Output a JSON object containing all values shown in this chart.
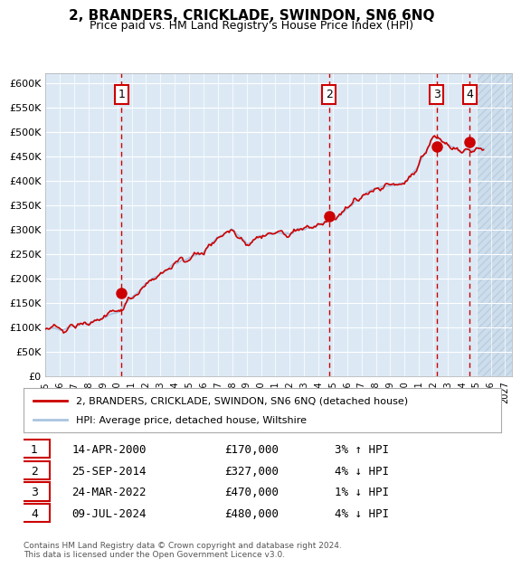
{
  "title": "2, BRANDERS, CRICKLADE, SWINDON, SN6 6NQ",
  "subtitle": "Price paid vs. HM Land Registry's House Price Index (HPI)",
  "ylim": [
    0,
    620000
  ],
  "yticks": [
    0,
    50000,
    100000,
    150000,
    200000,
    250000,
    300000,
    350000,
    400000,
    450000,
    500000,
    550000,
    600000
  ],
  "ytick_labels": [
    "£0",
    "£50K",
    "£100K",
    "£150K",
    "£200K",
    "£250K",
    "£300K",
    "£350K",
    "£400K",
    "£450K",
    "£500K",
    "£550K",
    "£600K"
  ],
  "xlim_start": 1995.0,
  "xlim_end": 2027.5,
  "sale_dates": [
    2000.29,
    2014.73,
    2022.23,
    2024.53
  ],
  "sale_prices": [
    170000,
    327000,
    470000,
    480000
  ],
  "sale_labels": [
    "1",
    "2",
    "3",
    "4"
  ],
  "legend_line1": "2, BRANDERS, CRICKLADE, SWINDON, SN6 6NQ (detached house)",
  "legend_line2": "HPI: Average price, detached house, Wiltshire",
  "table_rows": [
    [
      "1",
      "14-APR-2000",
      "£170,000",
      "3% ↑ HPI"
    ],
    [
      "2",
      "25-SEP-2014",
      "£327,000",
      "4% ↓ HPI"
    ],
    [
      "3",
      "24-MAR-2022",
      "£470,000",
      "1% ↓ HPI"
    ],
    [
      "4",
      "09-JUL-2024",
      "£480,000",
      "4% ↓ HPI"
    ]
  ],
  "footer": "Contains HM Land Registry data © Crown copyright and database right 2024.\nThis data is licensed under the Open Government Licence v3.0.",
  "hpi_color": "#aac4e0",
  "price_color": "#cc0000",
  "dot_color": "#cc0000",
  "bg_color": "#dce9f5",
  "hatch_color": "#c8d8e8",
  "vline_color": "#cc0000",
  "grid_color": "#ffffff",
  "hatch_start": 2025.0
}
